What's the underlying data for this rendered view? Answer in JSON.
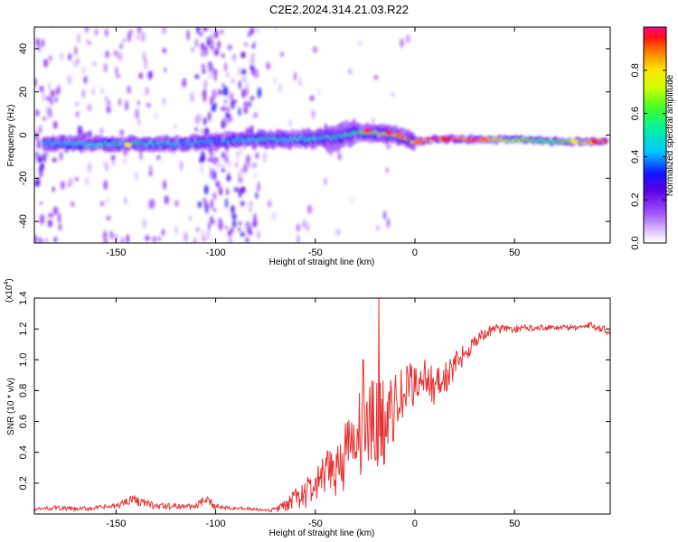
{
  "title": "C2E2.2024.314.21.03.R22",
  "colors": {
    "snr_line": "#e63232",
    "axis": "#000000",
    "background": "#ffffff"
  },
  "chart_data": [
    {
      "type": "heatmap",
      "xlabel": "Height of straight line (km)",
      "ylabel": "Frequency (Hz)",
      "xlim": [
        -191,
        98
      ],
      "ylim": [
        -50,
        50
      ],
      "x_ticks": [
        -150,
        -100,
        -50,
        0,
        50
      ],
      "y_ticks": [
        -40,
        -20,
        0,
        20,
        40
      ],
      "colorbar": {
        "label": "Normalized spectral amplitude",
        "range": [
          0,
          1
        ],
        "ticks": [
          "0.0",
          "0.2",
          "0.4",
          "0.6",
          "0.8"
        ]
      },
      "ridge": {
        "x": [
          -185,
          -150,
          -120,
          -100,
          -80,
          -60,
          -40,
          -30,
          -20,
          -10,
          0,
          10,
          30,
          50,
          70,
          95
        ],
        "y": [
          -4,
          -4,
          -4,
          -3,
          -2,
          -2,
          -1,
          1,
          1,
          0,
          -3,
          -2,
          -2,
          -2,
          -3,
          -3
        ],
        "amplitude": [
          0.45,
          0.5,
          0.45,
          0.4,
          0.45,
          0.5,
          0.45,
          0.55,
          0.7,
          0.75,
          0.9,
          0.95,
          0.9,
          0.7,
          0.55,
          0.95
        ]
      },
      "hot_spots": [
        {
          "x": -144,
          "y": -4.5,
          "amplitude": 0.8
        },
        {
          "x": -24,
          "y": 2,
          "amplitude": 0.95
        },
        {
          "x": -13,
          "y": 1,
          "amplitude": 0.95
        },
        {
          "x": -8,
          "y": 0,
          "amplitude": 0.9
        },
        {
          "x": 2,
          "y": -3,
          "amplitude": 0.9
        },
        {
          "x": 15,
          "y": -2,
          "amplitude": 0.95
        },
        {
          "x": 35,
          "y": -2,
          "amplitude": 0.9
        },
        {
          "x": 80,
          "y": -3,
          "amplitude": 0.8
        },
        {
          "x": 90,
          "y": -3,
          "amplitude": 0.95
        }
      ],
      "noise_bands": [
        {
          "x_range": [
            -191,
            -180
          ],
          "intensity": 0.3
        },
        {
          "x_range": [
            -180,
            -125
          ],
          "intensity": 0.15
        },
        {
          "x_range": [
            -125,
            -105
          ],
          "intensity": 0.08
        },
        {
          "x_range": [
            -110,
            -78
          ],
          "intensity": 0.45
        },
        {
          "x_range": [
            -78,
            -50
          ],
          "intensity": 0.06
        },
        {
          "x_range": [
            -50,
            0
          ],
          "intensity": 0.03
        },
        {
          "x_range": [
            0,
            98
          ],
          "intensity": 0.0
        }
      ]
    },
    {
      "type": "line",
      "xlabel": "Height of straight line (km)",
      "ylabel": "SNR (10 * v/v)",
      "y_multiplier": "(x10",
      "y_multiplier_exp": "4",
      "y_multiplier_close": ")",
      "xlim": [
        -191,
        98
      ],
      "ylim": [
        0,
        1.4
      ],
      "x_ticks": [
        -150,
        -100,
        -50,
        0,
        50
      ],
      "y_ticks": [
        "0.2",
        "0.4",
        "0.6",
        "0.8",
        "1.0",
        "1.2",
        "1.4"
      ],
      "series": [
        {
          "x": [
            -191,
            -180,
            -170,
            -160,
            -150,
            -142,
            -138,
            -130,
            -120,
            -110,
            -105,
            -100,
            -90,
            -80,
            -75,
            -70,
            -65,
            -60,
            -55,
            -50,
            -45,
            -40,
            -35,
            -30,
            -25,
            -20,
            -17,
            -15,
            -10,
            -5,
            0,
            5,
            10,
            15,
            20,
            25,
            30,
            35,
            40,
            50,
            60,
            70,
            80,
            90,
            98
          ],
          "y": [
            0.03,
            0.04,
            0.03,
            0.04,
            0.05,
            0.1,
            0.08,
            0.05,
            0.05,
            0.05,
            0.09,
            0.05,
            0.04,
            0.03,
            0.02,
            0.03,
            0.05,
            0.1,
            0.13,
            0.18,
            0.24,
            0.3,
            0.38,
            0.45,
            0.55,
            0.55,
            0.62,
            0.58,
            0.7,
            0.78,
            0.85,
            0.9,
            0.82,
            0.88,
            0.95,
            1.05,
            1.12,
            1.17,
            1.2,
            1.2,
            1.21,
            1.21,
            1.21,
            1.22,
            1.18
          ],
          "noise": [
            0.01,
            0.015,
            0.015,
            0.015,
            0.02,
            0.03,
            0.03,
            0.02,
            0.02,
            0.02,
            0.03,
            0.02,
            0.01,
            0.01,
            0.01,
            0.02,
            0.04,
            0.07,
            0.1,
            0.12,
            0.15,
            0.2,
            0.25,
            0.3,
            0.3,
            0.35,
            0.3,
            0.28,
            0.2,
            0.2,
            0.15,
            0.12,
            0.12,
            0.12,
            0.1,
            0.08,
            0.05,
            0.04,
            0.03,
            0.025,
            0.02,
            0.02,
            0.02,
            0.025,
            0.03
          ]
        }
      ],
      "spikes": [
        {
          "x": -18,
          "y": 1.4
        },
        {
          "x": -26,
          "y": 1.0
        }
      ]
    }
  ]
}
